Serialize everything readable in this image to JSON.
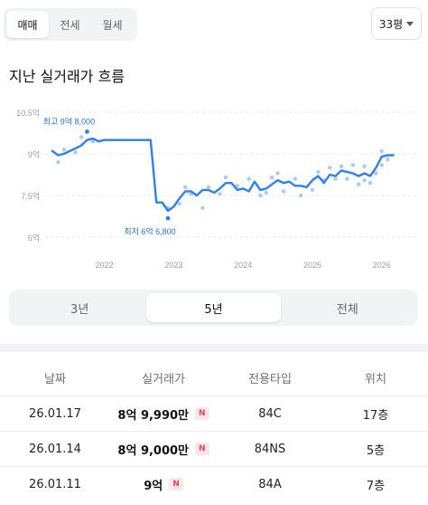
{
  "tabs": [
    {
      "label": "매매",
      "active": true
    },
    {
      "label": "전세",
      "active": false
    },
    {
      "label": "월세",
      "active": false
    }
  ],
  "area_select": {
    "value": "33평"
  },
  "section_title": "지난 실거래가 흐름",
  "chart_data": {
    "type": "line",
    "x_range": [
      "2021-04",
      "2026-04"
    ],
    "ylim": [
      6,
      10.5
    ],
    "y_ticks": [
      "10.5억",
      "9억",
      "7.5억",
      "6억"
    ],
    "x_ticks": [
      "2022",
      "2023",
      "2024",
      "2025",
      "2026"
    ],
    "annotations": [
      {
        "label": "최고 9억 8,000",
        "x": "2021-10",
        "y": 9.8
      },
      {
        "label": "최저 6억 6,800",
        "x": "2022-12",
        "y": 6.68
      }
    ],
    "series": [
      {
        "color": "#2f80ed",
        "points": [
          [
            "2021-04",
            9.1
          ],
          [
            "2021-05",
            8.95
          ],
          [
            "2021-06",
            9.0
          ],
          [
            "2021-07",
            9.1
          ],
          [
            "2021-08",
            9.2
          ],
          [
            "2021-09",
            9.3
          ],
          [
            "2021-10",
            9.5
          ],
          [
            "2021-11",
            9.55
          ],
          [
            "2021-12",
            9.45
          ],
          [
            "2022-01",
            9.5
          ],
          [
            "2022-04",
            9.5
          ],
          [
            "2022-07",
            9.5
          ],
          [
            "2022-09",
            9.5
          ],
          [
            "2022-10",
            7.25
          ],
          [
            "2022-11",
            7.25
          ],
          [
            "2022-12",
            6.95
          ],
          [
            "2023-01",
            7.1
          ],
          [
            "2023-02",
            7.4
          ],
          [
            "2023-03",
            7.65
          ],
          [
            "2023-04",
            7.65
          ],
          [
            "2023-05",
            7.5
          ],
          [
            "2023-06",
            7.7
          ],
          [
            "2023-07",
            7.7
          ],
          [
            "2023-08",
            7.6
          ],
          [
            "2023-09",
            7.75
          ],
          [
            "2023-10",
            7.95
          ],
          [
            "2023-11",
            7.95
          ],
          [
            "2023-12",
            7.7
          ],
          [
            "2024-01",
            7.75
          ],
          [
            "2024-02",
            7.65
          ],
          [
            "2024-03",
            8.0
          ],
          [
            "2024-04",
            7.7
          ],
          [
            "2024-05",
            7.75
          ],
          [
            "2024-06",
            7.9
          ],
          [
            "2024-07",
            8.05
          ],
          [
            "2024-08",
            7.95
          ],
          [
            "2024-09",
            8.0
          ],
          [
            "2024-10",
            7.85
          ],
          [
            "2024-11",
            7.85
          ],
          [
            "2024-12",
            7.8
          ],
          [
            "2025-01",
            8.05
          ],
          [
            "2025-02",
            8.2
          ],
          [
            "2025-03",
            7.95
          ],
          [
            "2025-04",
            8.25
          ],
          [
            "2025-05",
            8.2
          ],
          [
            "2025-06",
            8.4
          ],
          [
            "2025-07",
            8.35
          ],
          [
            "2025-08",
            8.3
          ],
          [
            "2025-09",
            8.2
          ],
          [
            "2025-10",
            8.3
          ],
          [
            "2025-11",
            8.2
          ],
          [
            "2025-12",
            8.5
          ],
          [
            "2026-01",
            8.9
          ],
          [
            "2026-02",
            8.95
          ],
          [
            "2026-03",
            8.95
          ]
        ]
      },
      {
        "type": "scatter",
        "color": "#a9cbf8",
        "points": [
          [
            "2021-05",
            8.7
          ],
          [
            "2021-06",
            9.15
          ],
          [
            "2021-08",
            9.05
          ],
          [
            "2021-09",
            9.6
          ],
          [
            "2021-11",
            9.45
          ],
          [
            "2022-12",
            7.05
          ],
          [
            "2023-02",
            7.2
          ],
          [
            "2023-03",
            7.8
          ],
          [
            "2023-04",
            7.55
          ],
          [
            "2023-06",
            7.05
          ],
          [
            "2023-07",
            7.8
          ],
          [
            "2023-09",
            7.55
          ],
          [
            "2023-10",
            8.15
          ],
          [
            "2023-12",
            7.85
          ],
          [
            "2024-02",
            8.1
          ],
          [
            "2024-04",
            7.5
          ],
          [
            "2024-05",
            7.6
          ],
          [
            "2024-06",
            8.15
          ],
          [
            "2024-07",
            8.3
          ],
          [
            "2024-08",
            7.65
          ],
          [
            "2024-10",
            8.1
          ],
          [
            "2024-11",
            7.5
          ],
          [
            "2025-01",
            7.7
          ],
          [
            "2025-02",
            8.35
          ],
          [
            "2025-03",
            8.05
          ],
          [
            "2025-04",
            8.5
          ],
          [
            "2025-05",
            8.1
          ],
          [
            "2025-06",
            8.55
          ],
          [
            "2025-07",
            8.1
          ],
          [
            "2025-08",
            8.6
          ],
          [
            "2025-09",
            7.9
          ],
          [
            "2025-10",
            8.55
          ],
          [
            "2025-11",
            7.95
          ],
          [
            "2025-12",
            8.3
          ],
          [
            "2026-01",
            9.1
          ],
          [
            "2026-02",
            8.8
          ],
          [
            "2026-01",
            8.6
          ],
          [
            "2025-10",
            8.05
          ]
        ]
      }
    ]
  },
  "periods": [
    {
      "label": "3년",
      "active": false
    },
    {
      "label": "5년",
      "active": true
    },
    {
      "label": "전체",
      "active": false
    }
  ],
  "table": {
    "headers": [
      "날짜",
      "실거래가",
      "전용타입",
      "위치"
    ],
    "badge": "N",
    "rows": [
      {
        "date": "26.01.17",
        "price": "8억 9,990만",
        "type": "84C",
        "floor": "17층"
      },
      {
        "date": "26.01.14",
        "price": "8억 9,000만",
        "type": "84NS",
        "floor": "5층"
      },
      {
        "date": "26.01.11",
        "price": "9억",
        "type": "84A",
        "floor": "7층"
      }
    ]
  }
}
